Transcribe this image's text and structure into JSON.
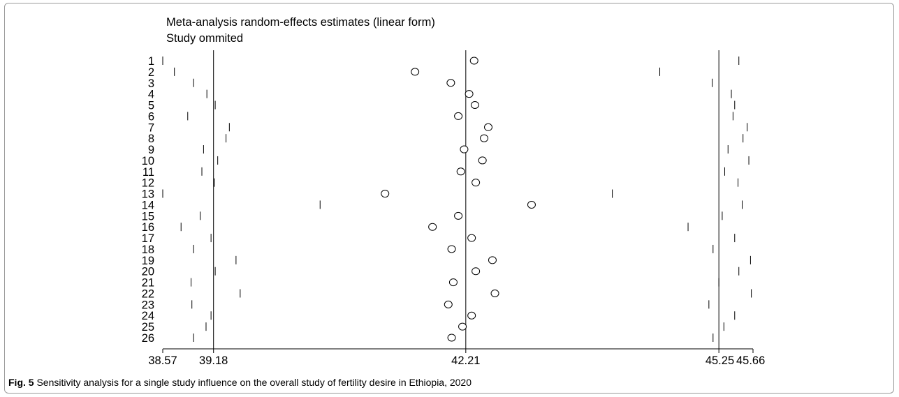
{
  "chart_data": {
    "type": "scatter",
    "title": "Meta-analysis random-effects estimates (linear form)",
    "subtitle": "Study ommited",
    "xlim": [
      38.57,
      45.66
    ],
    "xticks": [
      38.57,
      39.18,
      42.21,
      45.25,
      45.66
    ],
    "reference_lines": [
      39.18,
      42.21,
      45.25
    ],
    "studies": [
      {
        "label": "1",
        "estimate": 42.31,
        "lower": 38.57,
        "upper": 45.49
      },
      {
        "label": "2",
        "estimate": 41.6,
        "lower": 38.71,
        "upper": 44.54
      },
      {
        "label": "3",
        "estimate": 42.03,
        "lower": 38.94,
        "upper": 45.17
      },
      {
        "label": "4",
        "estimate": 42.25,
        "lower": 39.1,
        "upper": 45.4
      },
      {
        "label": "5",
        "estimate": 42.32,
        "lower": 39.2,
        "upper": 45.44
      },
      {
        "label": "6",
        "estimate": 42.12,
        "lower": 38.87,
        "upper": 45.42
      },
      {
        "label": "7",
        "estimate": 42.48,
        "lower": 39.37,
        "upper": 45.59
      },
      {
        "label": "8",
        "estimate": 42.43,
        "lower": 39.33,
        "upper": 45.54
      },
      {
        "label": "9",
        "estimate": 42.19,
        "lower": 39.06,
        "upper": 45.36
      },
      {
        "label": "10",
        "estimate": 42.41,
        "lower": 39.23,
        "upper": 45.61
      },
      {
        "label": "11",
        "estimate": 42.15,
        "lower": 39.04,
        "upper": 45.32
      },
      {
        "label": "12",
        "estimate": 42.33,
        "lower": 39.19,
        "upper": 45.48
      },
      {
        "label": "13",
        "estimate": 41.24,
        "lower": 38.57,
        "upper": 43.97
      },
      {
        "label": "14",
        "estimate": 43.0,
        "lower": 40.46,
        "upper": 45.53
      },
      {
        "label": "15",
        "estimate": 42.12,
        "lower": 39.02,
        "upper": 45.29
      },
      {
        "label": "16",
        "estimate": 41.81,
        "lower": 38.79,
        "upper": 44.88
      },
      {
        "label": "17",
        "estimate": 42.28,
        "lower": 39.15,
        "upper": 45.44
      },
      {
        "label": "18",
        "estimate": 42.04,
        "lower": 38.94,
        "upper": 45.18
      },
      {
        "label": "19",
        "estimate": 42.53,
        "lower": 39.45,
        "upper": 45.63
      },
      {
        "label": "20",
        "estimate": 42.33,
        "lower": 39.2,
        "upper": 45.49
      },
      {
        "label": "21",
        "estimate": 42.06,
        "lower": 38.91,
        "upper": 45.25
      },
      {
        "label": "22",
        "estimate": 42.56,
        "lower": 39.5,
        "upper": 45.64
      },
      {
        "label": "23",
        "estimate": 42.0,
        "lower": 38.92,
        "upper": 45.13
      },
      {
        "label": "24",
        "estimate": 42.28,
        "lower": 39.15,
        "upper": 45.44
      },
      {
        "label": "25",
        "estimate": 42.17,
        "lower": 39.09,
        "upper": 45.31
      },
      {
        "label": "26",
        "estimate": 42.04,
        "lower": 38.94,
        "upper": 45.18
      }
    ]
  },
  "caption": {
    "figure_label": "Fig. 5",
    "text": " Sensitivity analysis for a single study influence on the overall study of fertility desire in Ethiopia, 2020"
  }
}
